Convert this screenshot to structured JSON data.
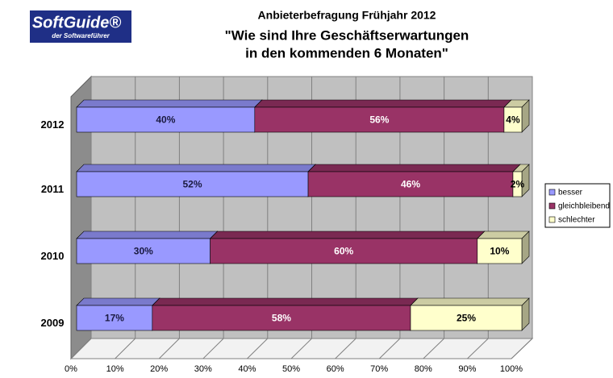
{
  "logo": {
    "name": "SoftGuide®",
    "tagline": "der Softwareführer"
  },
  "chart_data": {
    "type": "stacked-bar-3d",
    "title": "Anbieterbefragung Frühjahr 2012",
    "subtitle": [
      "\"Wie sind Ihre Geschäftserwartungen",
      "in den kommenden 6 Monaten\""
    ],
    "categories": [
      "2012",
      "2011",
      "2010",
      "2009"
    ],
    "series": [
      {
        "name": "besser",
        "color": "#9999ff",
        "label_color": "#1a1a40",
        "values": [
          40,
          52,
          30,
          17
        ],
        "value_labels": [
          "40%",
          "52%",
          "30%",
          "17%"
        ]
      },
      {
        "name": "gleichbleibend",
        "color": "#993366",
        "label_color": "#ffffff",
        "values": [
          56,
          46,
          60,
          58
        ],
        "value_labels": [
          "56%",
          "46%",
          "60%",
          "58%"
        ]
      },
      {
        "name": "schlechter",
        "color": "#ffffcc",
        "label_color": "#000000",
        "values": [
          4,
          2,
          10,
          25
        ],
        "value_labels": [
          "4%",
          "2%",
          "10%",
          "25%"
        ]
      }
    ],
    "xlim": [
      0,
      100
    ],
    "xticks": [
      {
        "value": 0,
        "label": "0%"
      },
      {
        "value": 10,
        "label": "10%"
      },
      {
        "value": 20,
        "label": "20%"
      },
      {
        "value": 30,
        "label": "30%"
      },
      {
        "value": 40,
        "label": "40%"
      },
      {
        "value": 50,
        "label": "50%"
      },
      {
        "value": 60,
        "label": "60%"
      },
      {
        "value": 70,
        "label": "70%"
      },
      {
        "value": 80,
        "label": "80%"
      },
      {
        "value": 90,
        "label": "90%"
      },
      {
        "value": 100,
        "label": "100%"
      }
    ],
    "grid": true,
    "legend": "right"
  }
}
